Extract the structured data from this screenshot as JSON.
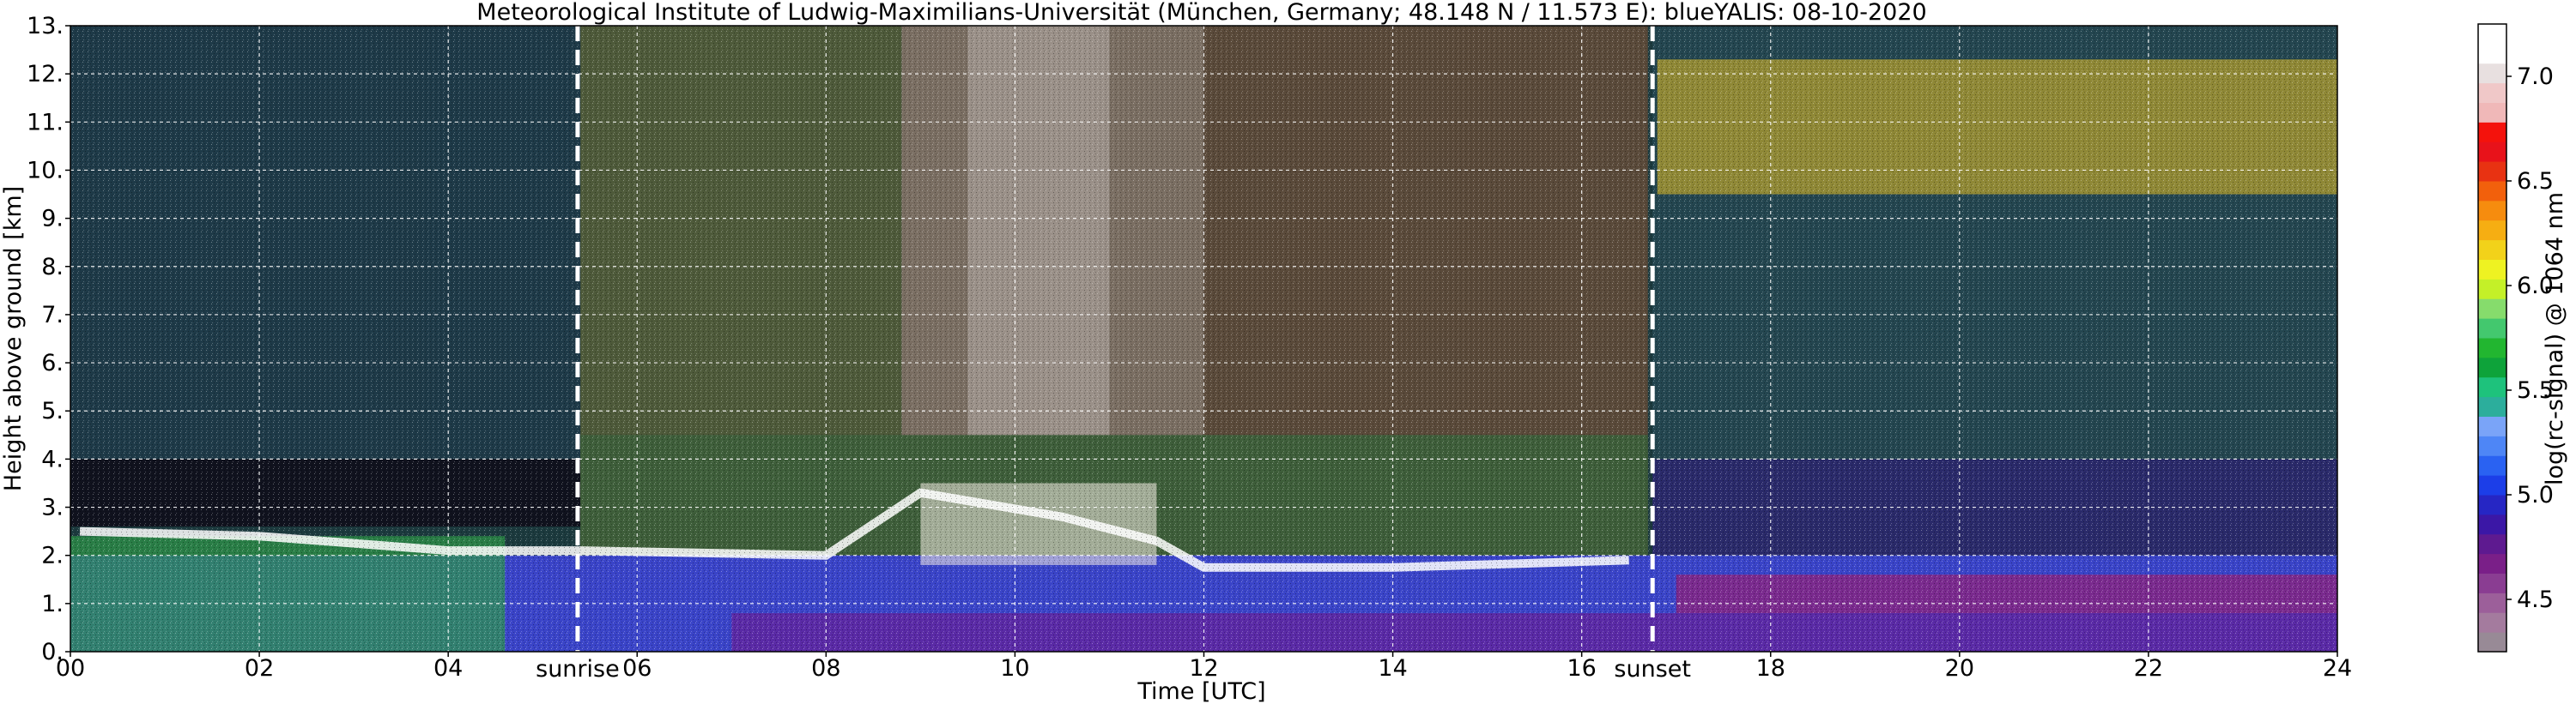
{
  "chart_data": {
    "type": "heatmap",
    "title": "Meteorological Institute of Ludwig-Maximilians-Universität (München, Germany; 48.148 N / 11.573 E):    blueYALIS: 08-10-2020",
    "xlabel": "Time [UTC]",
    "ylabel": "Height above ground [km]",
    "colorbar_label": "log(rc-signal) @ 1064 nm",
    "xlim": [
      0,
      24
    ],
    "ylim": [
      0,
      13
    ],
    "x_ticks": [
      {
        "value": 0,
        "label": "00"
      },
      {
        "value": 2,
        "label": "02"
      },
      {
        "value": 4,
        "label": "04"
      },
      {
        "value": 6,
        "label": "06"
      },
      {
        "value": 8,
        "label": "08"
      },
      {
        "value": 10,
        "label": "10"
      },
      {
        "value": 12,
        "label": "12"
      },
      {
        "value": 14,
        "label": "14"
      },
      {
        "value": 16,
        "label": "16"
      },
      {
        "value": 18,
        "label": "18"
      },
      {
        "value": 20,
        "label": "20"
      },
      {
        "value": 22,
        "label": "22"
      },
      {
        "value": 24,
        "label": "24"
      }
    ],
    "y_ticks": [
      {
        "value": 0,
        "label": "0."
      },
      {
        "value": 1,
        "label": "1."
      },
      {
        "value": 2,
        "label": "2."
      },
      {
        "value": 3,
        "label": "3."
      },
      {
        "value": 4,
        "label": "4."
      },
      {
        "value": 5,
        "label": "5."
      },
      {
        "value": 6,
        "label": "6."
      },
      {
        "value": 7,
        "label": "7."
      },
      {
        "value": 8,
        "label": "8."
      },
      {
        "value": 9,
        "label": "9."
      },
      {
        "value": 10,
        "label": "10."
      },
      {
        "value": 11,
        "label": "11."
      },
      {
        "value": 12,
        "label": "12."
      },
      {
        "value": 13,
        "label": "13."
      }
    ],
    "colorbar_ticks": [
      {
        "value": 4.5,
        "label": "4.5"
      },
      {
        "value": 5.0,
        "label": "5.0"
      },
      {
        "value": 5.5,
        "label": "5.5"
      },
      {
        "value": 6.0,
        "label": "6.0"
      },
      {
        "value": 6.5,
        "label": "6.5"
      },
      {
        "value": 7.0,
        "label": "7.0"
      }
    ],
    "colorbar_range": [
      4.25,
      7.25
    ],
    "colorbar_colors": [
      "#988a96",
      "#a47b9e",
      "#9c5f9a",
      "#8a3d92",
      "#7a1f88",
      "#5e1a90",
      "#3b17a6",
      "#2626c4",
      "#1c3ee8",
      "#2a62f2",
      "#4e86f6",
      "#7aa4f8",
      "#2cae9c",
      "#1ec27c",
      "#0ea33a",
      "#22b630",
      "#43c86e",
      "#86dc6c",
      "#c4f028",
      "#eef222",
      "#f2d21a",
      "#f6ae12",
      "#f68c0e",
      "#f2600c",
      "#e83212",
      "#e8121a",
      "#f4120c",
      "#f0b8b8",
      "#f0c8c8",
      "#e8e0e0",
      "#ffffff",
      "#ffffff"
    ],
    "grid": true,
    "annotations": [
      {
        "label": "sunrise",
        "x": 5.37
      },
      {
        "label": "sunset",
        "x": 16.75
      }
    ],
    "cloud_layers": [
      {
        "description_label": "",
        "x_range": [
          16.8,
          24
        ],
        "y_range": [
          9.5,
          12.3
        ],
        "level": 6.1
      },
      {
        "description_label": "",
        "x_range": [
          9.0,
          11.5
        ],
        "y_range": [
          1.8,
          3.5
        ],
        "level": 7.0
      }
    ]
  }
}
